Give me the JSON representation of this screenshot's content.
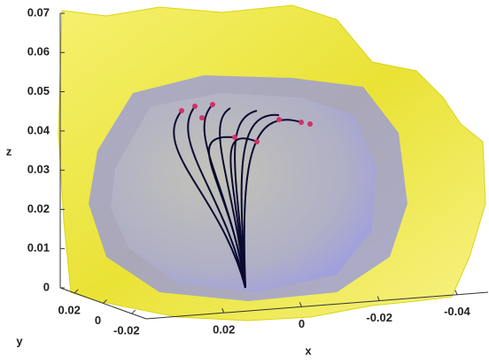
{
  "chart_data": {
    "type": "surface3d",
    "xlabel": "x",
    "ylabel": "y",
    "zlabel": "z",
    "xlim": [
      0.04,
      -0.048
    ],
    "xticks": [
      0.02,
      0,
      -0.02,
      -0.04
    ],
    "ylim": [
      0.03,
      -0.03
    ],
    "yticks": [
      0.02,
      0,
      -0.02
    ],
    "zlim": [
      0,
      0.07
    ],
    "zticks": [
      0,
      0.01,
      0.02,
      0.03,
      0.04,
      0.05,
      0.06,
      0.07
    ]
  }
}
